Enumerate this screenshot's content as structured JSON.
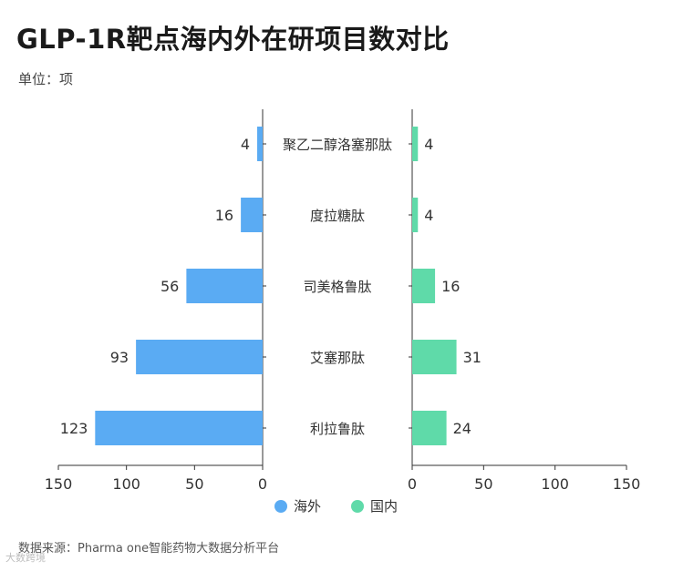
{
  "title": "GLP-1R靶点海内外在研项目数对比",
  "unit_label": "单位：项",
  "source": "数据来源：Pharma one智能药物大数据分析平台",
  "watermark": "大数跨境",
  "chart_data": {
    "type": "bar",
    "orientation": "horizontal-butterfly",
    "categories": [
      "聚乙二醇洛塞那肽",
      "度拉糖肽",
      "司美格鲁肽",
      "艾塞那肽",
      "利拉鲁肽"
    ],
    "series": [
      {
        "name": "海外",
        "values": [
          4,
          16,
          56,
          93,
          123
        ],
        "color": "#5aabf3"
      },
      {
        "name": "国内",
        "values": [
          4,
          4,
          16,
          31,
          24
        ],
        "color": "#5fdaa9"
      }
    ],
    "left_axis": {
      "ticks": [
        150,
        100,
        50,
        0
      ],
      "range": [
        0,
        150
      ]
    },
    "right_axis": {
      "ticks": [
        0,
        50,
        100,
        150
      ],
      "range": [
        0,
        150
      ]
    },
    "legend_position": "bottom",
    "grid": false
  }
}
